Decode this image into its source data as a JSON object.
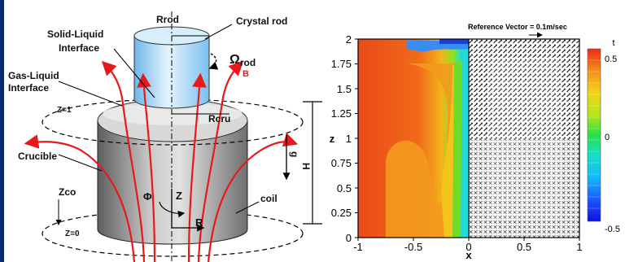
{
  "diagram": {
    "rrod": "Rrod",
    "crystal_rod": "Crystal rod",
    "solid_liquid_l1": "Solid-Liquid",
    "solid_liquid_l2": "Interface",
    "omega_rod": "Ω",
    "omega_sub": "rod",
    "gas_liquid_l1": "Gas-Liquid",
    "gas_liquid_l2": "Interface",
    "b_field": "B",
    "z1": "Z=1",
    "rcru": "Rcru",
    "g": "g",
    "h": "H",
    "crucible": "Crucible",
    "zco": "Zco",
    "phi": "Φ",
    "z_axis": "Z",
    "coil": "coil",
    "r_axis": "R",
    "z0": "Z=0",
    "colors": {
      "field_lines": "#e8191b",
      "crucible": "#8f8f8f",
      "rod": "#9fd0f2"
    }
  },
  "plot": {
    "reference_vector": "Reference Vector = 0.1m/sec",
    "xlabel": "x",
    "ylabel": "z",
    "xticks": [
      "-1",
      "-0.5",
      "0",
      "0.5",
      "1"
    ],
    "yticks": [
      "0",
      "0.25",
      "0.5",
      "0.75",
      "1",
      "1.25",
      "1.5",
      "1.75",
      "2"
    ],
    "colorbar_title": "t",
    "colorbar_ticks": [
      "0.5",
      "0",
      "-0.5"
    ],
    "colors": {
      "hot": "#e8401a",
      "warm": "#f28a1a",
      "cold": "#1a3fd6"
    }
  }
}
